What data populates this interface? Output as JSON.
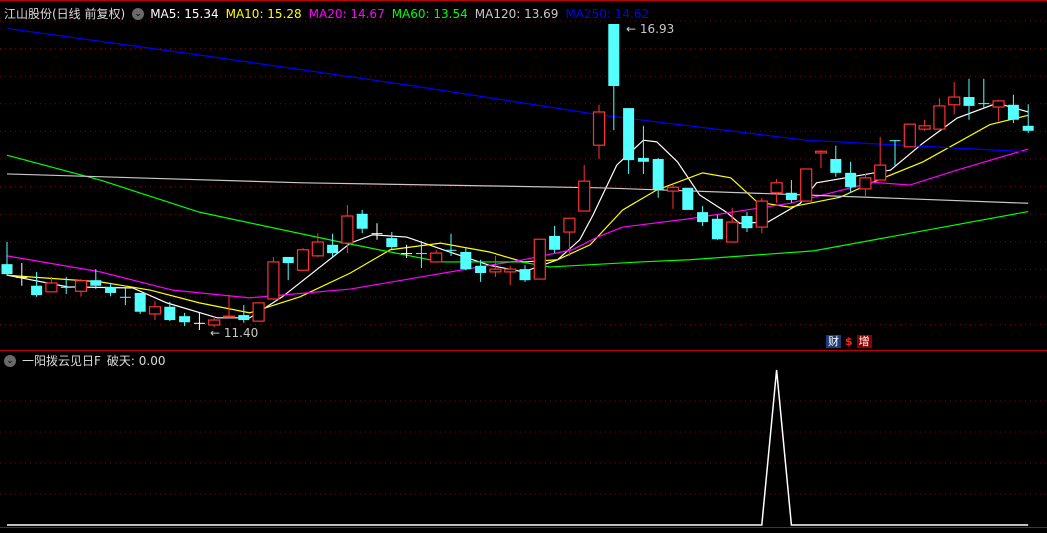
{
  "header": {
    "title": "江山股份(日线 前复权)",
    "ma_labels": [
      {
        "text": "MA5: 15.34",
        "color": "#ffffff"
      },
      {
        "text": "MA10: 15.28",
        "color": "#ffff00"
      },
      {
        "text": "MA20: 14.67",
        "color": "#ff00ff"
      },
      {
        "text": "MA60: 13.54",
        "color": "#00ff00"
      },
      {
        "text": "MA120: 13.69",
        "color": "#c8c8c8"
      },
      {
        "text": "MA250: 14.62",
        "color": "#0000ff"
      }
    ]
  },
  "indicator": {
    "name": "一阳拨云见日F",
    "value_label": "破天: 0.00",
    "series": [
      0,
      0,
      0,
      0,
      0,
      0,
      0,
      0,
      0,
      0,
      0,
      0,
      0,
      0,
      0,
      0,
      0,
      0,
      0,
      0,
      0,
      0,
      0,
      0,
      0,
      0,
      0,
      0,
      0,
      0,
      0,
      0,
      0,
      0,
      0,
      0,
      0,
      0,
      0,
      0,
      0,
      0,
      0,
      0,
      0,
      0,
      0,
      0,
      0,
      0,
      0,
      0,
      1,
      0,
      0,
      0,
      0,
      0,
      0,
      0,
      0,
      0,
      0,
      0,
      0,
      0,
      0,
      0,
      0,
      0
    ]
  },
  "badges": {
    "finance": "财",
    "money": "$",
    "increase": "增"
  },
  "colors": {
    "up": "#ff3232",
    "down": "#54ffff",
    "grid": "#8b0000",
    "divider": "#c00000"
  },
  "chart_data": {
    "type": "candlestick",
    "ylim": [
      11.4,
      16.93
    ],
    "annotations": {
      "high": "16.93",
      "low": "11.40"
    },
    "ohlc": [
      [
        12.59,
        12.99,
        12.38,
        12.41
      ],
      [
        12.36,
        12.61,
        12.2,
        12.36
      ],
      [
        12.2,
        12.45,
        12.0,
        12.03
      ],
      [
        12.09,
        12.36,
        12.09,
        12.25
      ],
      [
        12.18,
        12.36,
        12.05,
        12.18
      ],
      [
        12.1,
        12.32,
        12.01,
        12.29
      ],
      [
        12.3,
        12.5,
        12.14,
        12.2
      ],
      [
        12.18,
        12.25,
        12.01,
        12.07
      ],
      [
        12.0,
        12.18,
        11.85,
        12.0
      ],
      [
        12.07,
        12.07,
        11.69,
        11.73
      ],
      [
        11.69,
        11.92,
        11.58,
        11.82
      ],
      [
        11.82,
        11.91,
        11.56,
        11.58
      ],
      [
        11.65,
        11.71,
        11.47,
        11.54
      ],
      [
        11.53,
        11.71,
        11.4,
        11.53
      ],
      [
        11.49,
        11.64,
        11.45,
        11.58
      ],
      [
        11.64,
        12.03,
        11.64,
        11.65
      ],
      [
        11.67,
        11.85,
        11.53,
        11.58
      ],
      [
        11.56,
        11.89,
        11.56,
        11.89
      ],
      [
        11.96,
        12.72,
        11.94,
        12.63
      ],
      [
        12.72,
        12.72,
        12.3,
        12.61
      ],
      [
        12.48,
        12.88,
        12.48,
        12.85
      ],
      [
        12.74,
        13.15,
        12.72,
        12.99
      ],
      [
        12.94,
        13.14,
        12.72,
        12.79
      ],
      [
        12.97,
        13.66,
        12.79,
        13.46
      ],
      [
        13.5,
        13.57,
        13.15,
        13.23
      ],
      [
        13.15,
        13.33,
        13.03,
        13.15
      ],
      [
        13.06,
        13.17,
        12.85,
        12.9
      ],
      [
        12.79,
        12.94,
        12.7,
        12.79
      ],
      [
        12.79,
        13.01,
        12.52,
        12.79
      ],
      [
        12.63,
        12.85,
        12.63,
        12.79
      ],
      [
        12.85,
        13.14,
        12.74,
        12.85
      ],
      [
        12.81,
        12.88,
        12.48,
        12.5
      ],
      [
        12.56,
        12.67,
        12.27,
        12.43
      ],
      [
        12.45,
        12.74,
        12.36,
        12.5
      ],
      [
        12.45,
        12.56,
        12.21,
        12.5
      ],
      [
        12.5,
        12.57,
        12.27,
        12.3
      ],
      [
        12.32,
        13.04,
        12.32,
        13.04
      ],
      [
        13.1,
        13.28,
        12.79,
        12.85
      ],
      [
        13.17,
        13.42,
        12.74,
        13.42
      ],
      [
        13.55,
        14.38,
        13.55,
        14.09
      ],
      [
        14.74,
        15.47,
        14.49,
        15.34
      ],
      [
        16.93,
        16.93,
        15.01,
        15.81
      ],
      [
        15.41,
        15.41,
        14.22,
        14.47
      ],
      [
        14.51,
        15.09,
        14.22,
        14.44
      ],
      [
        14.49,
        14.51,
        13.79,
        13.93
      ],
      [
        13.91,
        14.02,
        13.59,
        13.98
      ],
      [
        13.97,
        13.97,
        13.57,
        13.57
      ],
      [
        13.53,
        13.64,
        13.28,
        13.35
      ],
      [
        13.41,
        13.48,
        13.03,
        13.04
      ],
      [
        12.99,
        13.61,
        12.99,
        13.35
      ],
      [
        13.46,
        13.53,
        13.17,
        13.24
      ],
      [
        13.26,
        13.79,
        13.15,
        13.73
      ],
      [
        13.88,
        14.13,
        13.7,
        14.06
      ],
      [
        13.88,
        14.11,
        13.7,
        13.75
      ],
      [
        13.73,
        14.31,
        13.73,
        14.31
      ],
      [
        14.6,
        14.65,
        14.33,
        14.63
      ],
      [
        14.49,
        14.73,
        14.17,
        14.24
      ],
      [
        14.24,
        14.44,
        13.88,
        13.98
      ],
      [
        13.95,
        14.22,
        13.82,
        14.15
      ],
      [
        14.11,
        14.89,
        14.11,
        14.38
      ],
      [
        14.83,
        14.83,
        14.35,
        14.83
      ],
      [
        14.71,
        15.12,
        14.71,
        15.12
      ],
      [
        15.03,
        15.2,
        15.0,
        15.09
      ],
      [
        15.03,
        15.59,
        15.03,
        15.45
      ],
      [
        15.47,
        15.88,
        15.3,
        15.61
      ],
      [
        15.61,
        15.94,
        15.2,
        15.45
      ],
      [
        15.5,
        15.94,
        15.41,
        15.5
      ],
      [
        15.43,
        15.56,
        15.18,
        15.54
      ],
      [
        15.47,
        15.65,
        15.14,
        15.2
      ],
      [
        15.09,
        15.48,
        14.96,
        15.0
      ]
    ],
    "ma_series": [
      {
        "name": "MA5",
        "color": "#ffffff",
        "points": [
          [
            0,
            12.39
          ],
          [
            4.1,
            12.18
          ],
          [
            8.5,
            12.16
          ],
          [
            10.8,
            11.89
          ],
          [
            14.2,
            11.62
          ],
          [
            16.4,
            11.62
          ],
          [
            18.6,
            12.0
          ],
          [
            23.2,
            12.97
          ],
          [
            24.7,
            13.12
          ],
          [
            27,
            13.08
          ],
          [
            29.9,
            12.81
          ],
          [
            32.6,
            12.57
          ],
          [
            34.9,
            12.45
          ],
          [
            37.2,
            12.67
          ],
          [
            38.7,
            13.03
          ],
          [
            39.6,
            13.48
          ],
          [
            41.2,
            14.38
          ],
          [
            43,
            14.83
          ],
          [
            43.9,
            14.8
          ],
          [
            45.3,
            14.44
          ],
          [
            46.8,
            13.84
          ],
          [
            48.6,
            13.53
          ],
          [
            49.5,
            13.33
          ],
          [
            51.4,
            13.35
          ],
          [
            53.6,
            13.69
          ],
          [
            54.7,
            14.06
          ],
          [
            59.7,
            14.29
          ],
          [
            61.9,
            14.78
          ],
          [
            64.2,
            15.23
          ],
          [
            66.9,
            15.5
          ],
          [
            69,
            15.34
          ]
        ]
      },
      {
        "name": "MA10",
        "color": "#ffff00",
        "points": [
          [
            0,
            12.39
          ],
          [
            6.3,
            12.27
          ],
          [
            9.7,
            12.12
          ],
          [
            13,
            11.89
          ],
          [
            16.4,
            11.71
          ],
          [
            19.8,
            12.0
          ],
          [
            23.2,
            12.43
          ],
          [
            25.9,
            12.85
          ],
          [
            29.3,
            12.97
          ],
          [
            32.6,
            12.81
          ],
          [
            34.9,
            12.63
          ],
          [
            37.2,
            12.67
          ],
          [
            39.4,
            12.94
          ],
          [
            41.6,
            13.57
          ],
          [
            43.9,
            13.93
          ],
          [
            47,
            14.24
          ],
          [
            48.9,
            14.15
          ],
          [
            50.7,
            13.71
          ],
          [
            52.9,
            13.62
          ],
          [
            56.3,
            13.8
          ],
          [
            58.5,
            14.07
          ],
          [
            61.9,
            14.44
          ],
          [
            66.4,
            15.11
          ],
          [
            69,
            15.28
          ]
        ]
      },
      {
        "name": "MA20",
        "color": "#ff00ff",
        "points": [
          [
            0,
            12.74
          ],
          [
            6.3,
            12.45
          ],
          [
            11.2,
            12.12
          ],
          [
            16.4,
            11.98
          ],
          [
            23.2,
            12.14
          ],
          [
            31.5,
            12.52
          ],
          [
            34.7,
            12.66
          ],
          [
            38.2,
            12.85
          ],
          [
            39.9,
            13.08
          ],
          [
            41.6,
            13.26
          ],
          [
            46.1,
            13.41
          ],
          [
            52.9,
            13.69
          ],
          [
            58.5,
            14.07
          ],
          [
            61,
            14.02
          ],
          [
            64.2,
            14.29
          ],
          [
            69,
            14.67
          ]
        ]
      },
      {
        "name": "MA60",
        "color": "#00ff00",
        "points": [
          [
            0,
            14.56
          ],
          [
            6.3,
            14.11
          ],
          [
            13,
            13.53
          ],
          [
            22.5,
            12.99
          ],
          [
            29.3,
            12.63
          ],
          [
            34.7,
            12.63
          ],
          [
            36.7,
            12.54
          ],
          [
            42.8,
            12.63
          ],
          [
            46.1,
            12.67
          ],
          [
            54.5,
            12.83
          ],
          [
            69,
            13.54
          ]
        ]
      },
      {
        "name": "MA120",
        "color": "#c8c8c8",
        "points": [
          [
            0,
            14.22
          ],
          [
            20,
            14.06
          ],
          [
            40,
            13.97
          ],
          [
            54,
            13.84
          ],
          [
            69,
            13.69
          ]
        ]
      },
      {
        "name": "MA250",
        "color": "#0000ff",
        "points": [
          [
            0,
            16.85
          ],
          [
            13,
            16.37
          ],
          [
            27,
            15.83
          ],
          [
            40,
            15.29
          ],
          [
            54,
            14.83
          ],
          [
            69,
            14.62
          ]
        ]
      }
    ]
  }
}
